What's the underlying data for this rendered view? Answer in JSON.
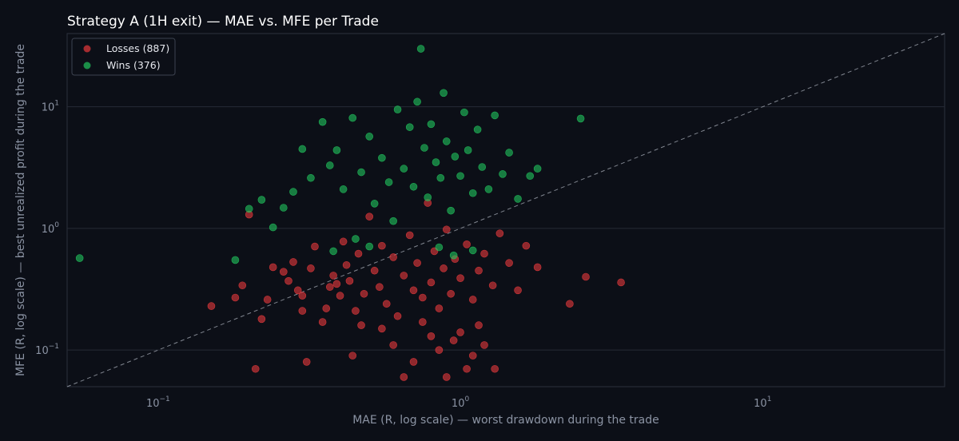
{
  "chart_data": {
    "type": "scatter",
    "title": "Strategy A (1H exit) — MAE vs. MFE per Trade",
    "xlabel": "MAE (R, log scale) — worst drawdown during the trade",
    "ylabel": "MFE (R, log scale) — best unrealized profit during the trade",
    "x_scale": "log",
    "y_scale": "log",
    "xlim": [
      0.05,
      40
    ],
    "ylim": [
      0.05,
      40
    ],
    "x_ticks": [
      {
        "value": 0.1,
        "base": "10",
        "exp": "−1"
      },
      {
        "value": 1,
        "base": "10",
        "exp": "0"
      },
      {
        "value": 10,
        "base": "10",
        "exp": "1"
      }
    ],
    "y_ticks": [
      {
        "value": 0.1,
        "base": "10",
        "exp": "−1"
      },
      {
        "value": 1,
        "base": "10",
        "exp": "0"
      },
      {
        "value": 10,
        "base": "10",
        "exp": "1"
      }
    ],
    "grid": "horizontal",
    "reference_line": "y = x (dashed)",
    "legend_position": "top-left",
    "series": [
      {
        "name": "Losses (887)",
        "color": "#e8393c",
        "sampled": true,
        "points": [
          [
            0.15,
            0.23
          ],
          [
            0.18,
            0.27
          ],
          [
            0.19,
            0.34
          ],
          [
            0.2,
            1.3
          ],
          [
            0.21,
            0.07
          ],
          [
            0.22,
            0.18
          ],
          [
            0.23,
            0.26
          ],
          [
            0.24,
            0.48
          ],
          [
            0.26,
            0.44
          ],
          [
            0.27,
            0.37
          ],
          [
            0.28,
            0.53
          ],
          [
            0.29,
            0.31
          ],
          [
            0.3,
            0.21
          ],
          [
            0.3,
            0.28
          ],
          [
            0.31,
            0.08
          ],
          [
            0.32,
            0.47
          ],
          [
            0.33,
            0.71
          ],
          [
            0.35,
            0.17
          ],
          [
            0.36,
            0.22
          ],
          [
            0.37,
            0.33
          ],
          [
            0.38,
            0.41
          ],
          [
            0.39,
            0.35
          ],
          [
            0.4,
            0.28
          ],
          [
            0.41,
            0.78
          ],
          [
            0.42,
            0.5
          ],
          [
            0.43,
            0.37
          ],
          [
            0.44,
            0.09
          ],
          [
            0.45,
            0.21
          ],
          [
            0.46,
            0.62
          ],
          [
            0.47,
            0.16
          ],
          [
            0.48,
            0.29
          ],
          [
            0.5,
            1.25
          ],
          [
            0.52,
            0.45
          ],
          [
            0.54,
            0.33
          ],
          [
            0.55,
            0.72
          ],
          [
            0.57,
            0.24
          ],
          [
            0.6,
            0.58
          ],
          [
            0.62,
            0.19
          ],
          [
            0.65,
            0.41
          ],
          [
            0.68,
            0.88
          ],
          [
            0.7,
            0.31
          ],
          [
            0.72,
            0.52
          ],
          [
            0.75,
            0.27
          ],
          [
            0.78,
            1.62
          ],
          [
            0.8,
            0.36
          ],
          [
            0.82,
            0.65
          ],
          [
            0.85,
            0.22
          ],
          [
            0.88,
            0.47
          ],
          [
            0.9,
            0.98
          ],
          [
            0.93,
            0.29
          ],
          [
            0.96,
            0.56
          ],
          [
            1.0,
            0.39
          ],
          [
            1.05,
            0.74
          ],
          [
            1.1,
            0.26
          ],
          [
            1.15,
            0.45
          ],
          [
            1.2,
            0.62
          ],
          [
            1.28,
            0.34
          ],
          [
            1.35,
            0.91
          ],
          [
            1.45,
            0.52
          ],
          [
            1.55,
            0.31
          ],
          [
            1.65,
            0.72
          ],
          [
            1.8,
            0.48
          ],
          [
            2.3,
            0.24
          ],
          [
            2.6,
            0.4
          ],
          [
            3.4,
            0.36
          ],
          [
            0.6,
            0.11
          ],
          [
            0.7,
            0.08
          ],
          [
            0.8,
            0.13
          ],
          [
            0.9,
            0.06
          ],
          [
            1.0,
            0.14
          ],
          [
            1.1,
            0.09
          ],
          [
            1.2,
            0.11
          ],
          [
            1.3,
            0.07
          ],
          [
            0.55,
            0.15
          ],
          [
            0.65,
            0.06
          ],
          [
            0.75,
            0.17
          ],
          [
            0.85,
            0.1
          ],
          [
            0.95,
            0.12
          ],
          [
            1.05,
            0.07
          ],
          [
            1.15,
            0.16
          ]
        ]
      },
      {
        "name": "Wins (376)",
        "color": "#22c55e",
        "sampled": true,
        "points": [
          [
            0.055,
            0.57
          ],
          [
            0.18,
            0.55
          ],
          [
            0.2,
            1.45
          ],
          [
            0.22,
            1.72
          ],
          [
            0.24,
            1.02
          ],
          [
            0.26,
            1.48
          ],
          [
            0.28,
            2.0
          ],
          [
            0.3,
            4.5
          ],
          [
            0.32,
            2.6
          ],
          [
            0.35,
            7.5
          ],
          [
            0.37,
            3.3
          ],
          [
            0.39,
            4.4
          ],
          [
            0.41,
            2.1
          ],
          [
            0.44,
            8.1
          ],
          [
            0.47,
            2.9
          ],
          [
            0.5,
            5.7
          ],
          [
            0.52,
            1.6
          ],
          [
            0.55,
            3.8
          ],
          [
            0.58,
            2.4
          ],
          [
            0.6,
            1.15
          ],
          [
            0.62,
            9.5
          ],
          [
            0.65,
            3.1
          ],
          [
            0.68,
            6.8
          ],
          [
            0.7,
            2.2
          ],
          [
            0.72,
            11.0
          ],
          [
            0.74,
            30.0
          ],
          [
            0.76,
            4.6
          ],
          [
            0.78,
            1.8
          ],
          [
            0.8,
            7.2
          ],
          [
            0.83,
            3.5
          ],
          [
            0.86,
            2.6
          ],
          [
            0.88,
            13.0
          ],
          [
            0.9,
            5.2
          ],
          [
            0.93,
            1.4
          ],
          [
            0.96,
            3.9
          ],
          [
            1.0,
            2.7
          ],
          [
            1.03,
            9.0
          ],
          [
            1.06,
            4.4
          ],
          [
            1.1,
            1.95
          ],
          [
            1.14,
            6.5
          ],
          [
            1.18,
            3.2
          ],
          [
            1.24,
            2.1
          ],
          [
            1.3,
            8.5
          ],
          [
            1.38,
            2.8
          ],
          [
            1.45,
            4.2
          ],
          [
            1.55,
            1.75
          ],
          [
            1.7,
            2.7
          ],
          [
            1.8,
            3.1
          ],
          [
            2.5,
            8.0
          ],
          [
            0.38,
            0.65
          ],
          [
            0.45,
            0.82
          ],
          [
            0.5,
            0.71
          ],
          [
            0.85,
            0.7
          ],
          [
            0.95,
            0.6
          ],
          [
            1.1,
            0.66
          ]
        ]
      }
    ]
  }
}
